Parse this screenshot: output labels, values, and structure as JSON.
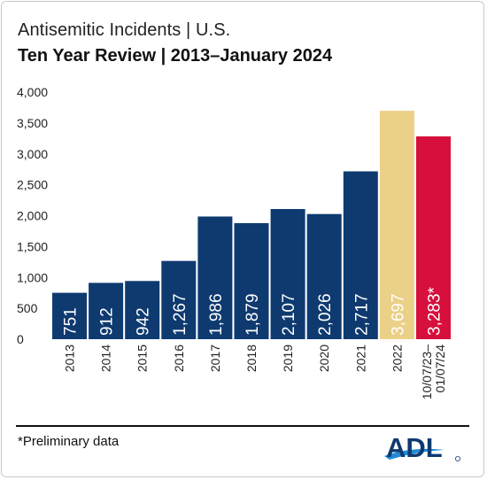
{
  "title": "Antisemitic Incidents | U.S.",
  "subtitle": "Ten Year Review | 2013–January 2024",
  "footnote": "*Preliminary data",
  "logo": {
    "text": "ADL",
    "icon": "adl-logo"
  },
  "colors": {
    "navy": "#0e3a70",
    "gold": "#ebd087",
    "red": "#d60f3c",
    "text": "#111111"
  },
  "chart_data": {
    "type": "bar",
    "categories": [
      "2013",
      "2014",
      "2015",
      "2016",
      "2017",
      "2018",
      "2019",
      "2020",
      "2021",
      "2022",
      "10/07/23–\n01/07/24"
    ],
    "values": [
      751,
      912,
      942,
      1267,
      1986,
      1879,
      2107,
      2026,
      2717,
      3697,
      3283
    ],
    "data_labels": [
      "751",
      "912",
      "942",
      "1,267",
      "1,986",
      "1,879",
      "2,107",
      "2,026",
      "2,717",
      "3,697",
      "3,283*"
    ],
    "bar_colors": [
      "#0e3a70",
      "#0e3a70",
      "#0e3a70",
      "#0e3a70",
      "#0e3a70",
      "#0e3a70",
      "#0e3a70",
      "#0e3a70",
      "#0e3a70",
      "#ebd087",
      "#d60f3c"
    ],
    "ylim": [
      0,
      4000
    ],
    "yticks": [
      0,
      500,
      1000,
      1500,
      2000,
      2500,
      3000,
      3500,
      4000
    ],
    "ytick_labels": [
      "0",
      "500",
      "1,000",
      "1,500",
      "2,000",
      "2,500",
      "3,000",
      "3,500",
      "4,000"
    ],
    "title": "Antisemitic Incidents | U.S.",
    "subtitle": "Ten Year Review | 2013–January 2024",
    "xlabel": "",
    "ylabel": "",
    "grid": false,
    "legend": "none"
  }
}
